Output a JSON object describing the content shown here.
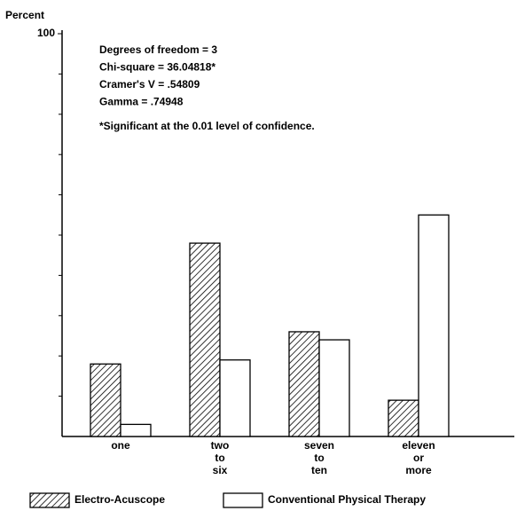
{
  "chart_data": {
    "type": "bar",
    "y_label": "Percent",
    "annotations": [
      "Degrees of freedom = 3",
      "Chi-square = 36.04818*",
      "Cramer's V = .54809",
      "Gamma = .74948",
      "*Significant at the 0.01 level of confidence."
    ],
    "categories": [
      "one",
      "two\nto\nsix",
      "seven\nto\nten",
      "eleven\nor\nmore"
    ],
    "series": [
      {
        "name": "Electro-Acuscope",
        "color": "#000000",
        "fill": "hatch",
        "values": [
          18,
          48,
          26,
          9
        ]
      },
      {
        "name": "Conventional Physical Therapy",
        "color": "#000000",
        "fill": "none",
        "values": [
          3,
          19,
          24,
          55
        ]
      }
    ],
    "ylim": [
      0,
      100
    ],
    "yticks": [
      100
    ],
    "minor_yticks": [
      10,
      20,
      30,
      40,
      50,
      60,
      70,
      80,
      90
    ],
    "legend": "bottom"
  }
}
